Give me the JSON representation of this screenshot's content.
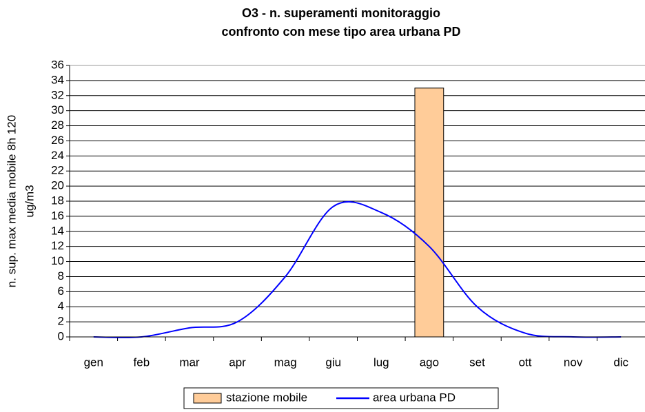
{
  "chart_data": {
    "type": "bar_line",
    "title": [
      "O3 - n. superamenti monitoraggio",
      "confronto con mese tipo area urbana PD"
    ],
    "ylabel": [
      "n. sup. max media mobile 8h 120",
      "ug/m3"
    ],
    "categories": [
      "gen",
      "feb",
      "mar",
      "apr",
      "mag",
      "giu",
      "lug",
      "ago",
      "set",
      "ott",
      "nov",
      "dic"
    ],
    "series": [
      {
        "name": "stazione mobile",
        "type": "bar",
        "color": "#ffcc99",
        "values": [
          null,
          null,
          null,
          null,
          null,
          null,
          null,
          33,
          null,
          null,
          null,
          null
        ]
      },
      {
        "name": "area urbana PD",
        "type": "line",
        "color": "#0000ff",
        "values": [
          0,
          0,
          1.2,
          2,
          8,
          17.3,
          16.5,
          12,
          4,
          0.5,
          0,
          0
        ]
      }
    ],
    "ylim": [
      0,
      36
    ],
    "yticks": [
      0,
      2,
      4,
      6,
      8,
      10,
      12,
      14,
      16,
      18,
      20,
      22,
      24,
      26,
      28,
      30,
      32,
      34,
      36
    ],
    "grid": true,
    "legend": "bottom"
  }
}
